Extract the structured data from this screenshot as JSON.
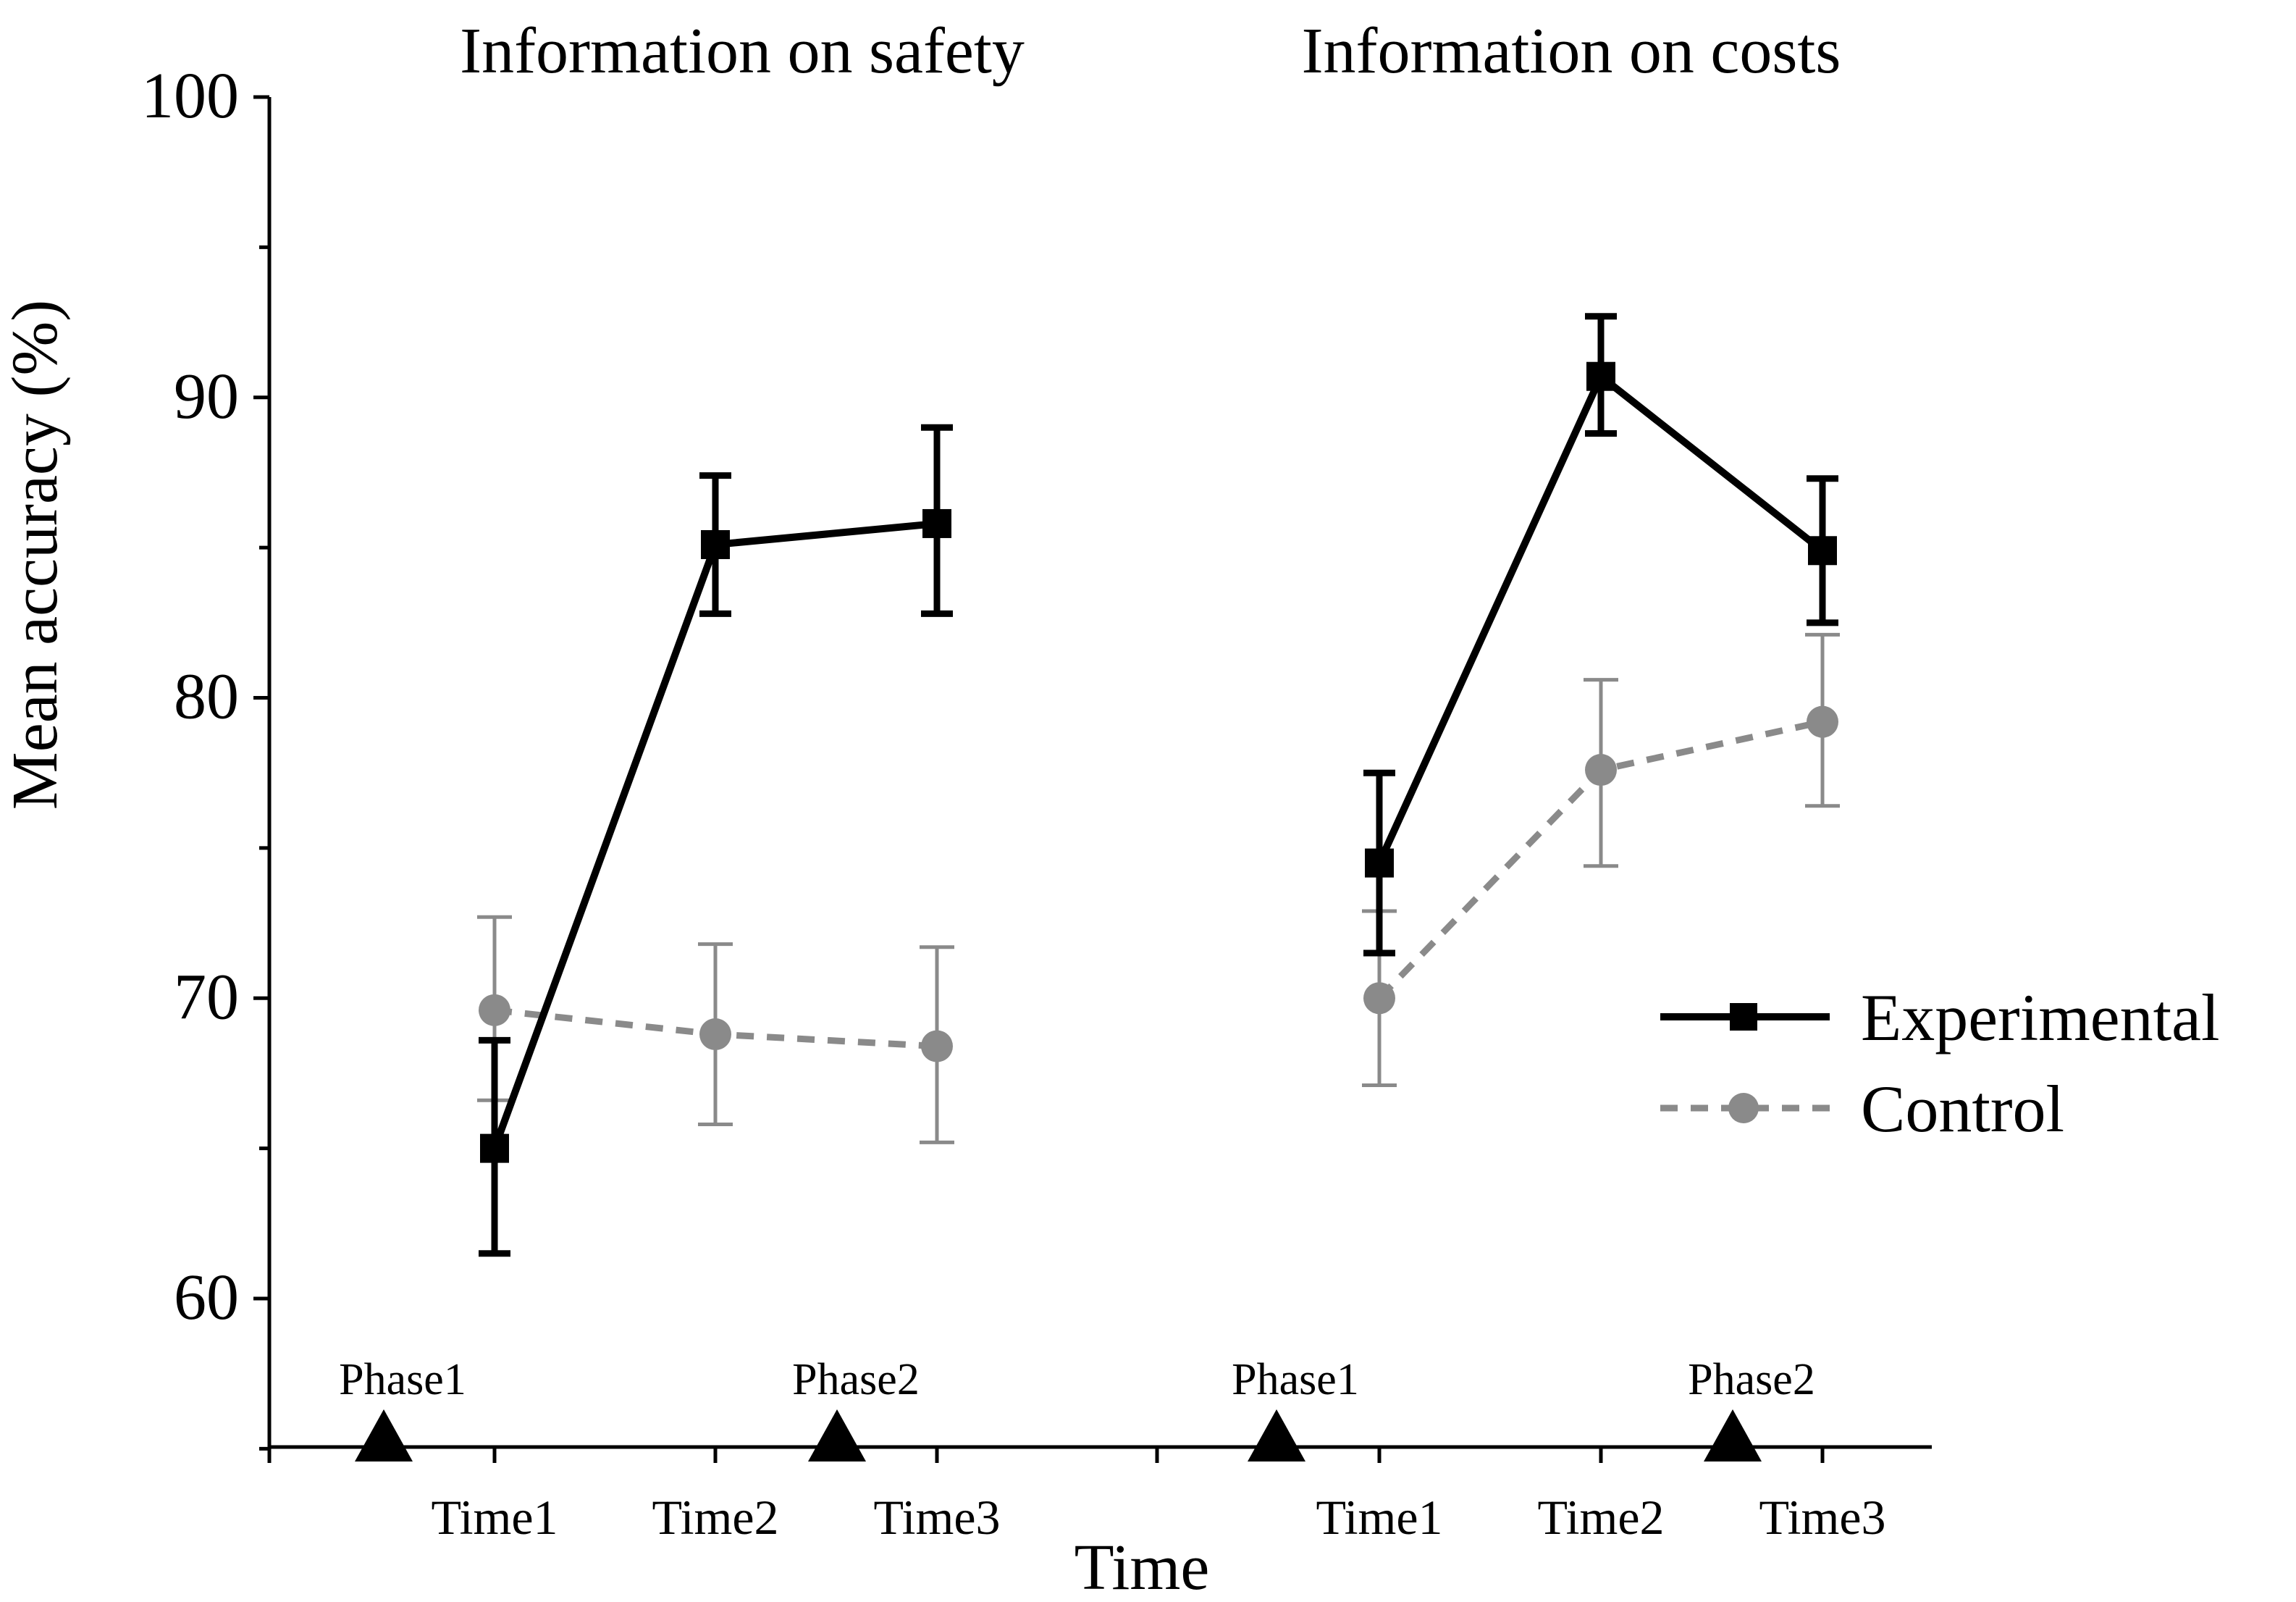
{
  "chart_data": {
    "type": "line",
    "ylabel": "Mean accuracy (%)",
    "xlabel": "Time",
    "ylim": [
      55,
      100
    ],
    "yticks": [
      60,
      70,
      80,
      90,
      100
    ],
    "colors": {
      "experimental": "#000000",
      "control": "#8a8a8a"
    },
    "legend": {
      "placement": "right",
      "entries": [
        {
          "name": "Experimental",
          "style": "solid",
          "marker": "square"
        },
        {
          "name": "Control",
          "style": "dashed",
          "marker": "circle"
        }
      ]
    },
    "panels": [
      {
        "title": "Information on safety",
        "categories": [
          "Time1",
          "Time2",
          "Time3"
        ],
        "phase_markers": [
          {
            "label": "Phase1",
            "between": [
              0,
              1
            ]
          },
          {
            "label": "Phase2",
            "between": [
              2,
              3
            ]
          }
        ],
        "series": [
          {
            "name": "Experimental",
            "values": [
              65.0,
              85.1,
              85.8
            ],
            "err_low": [
              61.5,
              82.8,
              82.8
            ],
            "err_high": [
              68.6,
              87.4,
              89.0
            ]
          },
          {
            "name": "Control",
            "values": [
              69.6,
              68.8,
              68.4
            ],
            "err_low": [
              66.6,
              65.8,
              65.2
            ],
            "err_high": [
              72.7,
              71.8,
              71.7
            ]
          }
        ]
      },
      {
        "title": "Information on costs",
        "categories": [
          "Time1",
          "Time2",
          "Time3"
        ],
        "phase_markers": [
          {
            "label": "Phase1",
            "between": [
              0,
              1
            ]
          },
          {
            "label": "Phase2",
            "between": [
              2,
              3
            ]
          }
        ],
        "series": [
          {
            "name": "Experimental",
            "values": [
              74.5,
              90.7,
              84.9
            ],
            "err_low": [
              71.5,
              88.8,
              82.5
            ],
            "err_high": [
              77.5,
              92.7,
              87.3
            ]
          },
          {
            "name": "Control",
            "values": [
              70.0,
              77.6,
              79.2
            ],
            "err_low": [
              67.1,
              74.4,
              76.4
            ],
            "err_high": [
              72.9,
              80.6,
              82.1
            ]
          }
        ]
      }
    ]
  }
}
